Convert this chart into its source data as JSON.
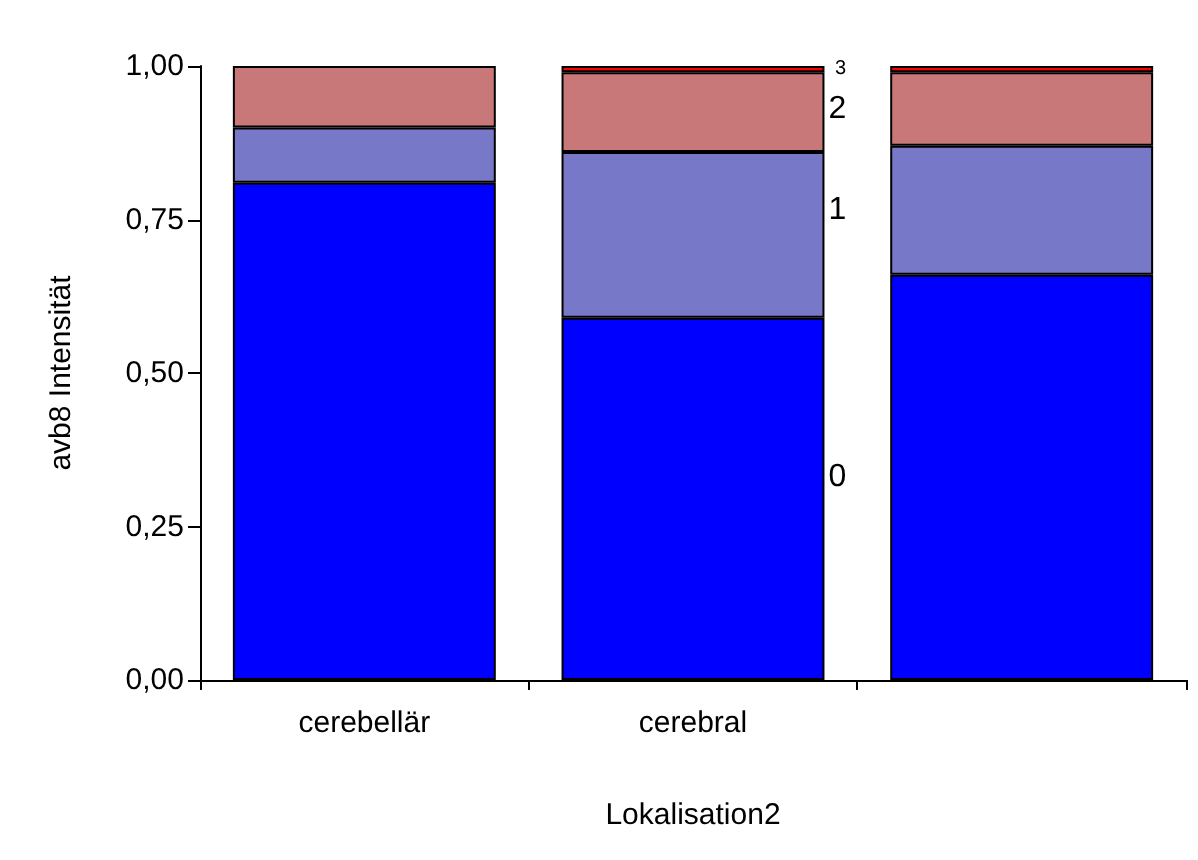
{
  "chart_data": {
    "type": "bar",
    "stacked": true,
    "xlabel": "Lokalisation2",
    "ylabel": "avb8 Intensität",
    "categories": [
      "cerebellär",
      "cerebral",
      null
    ],
    "series": [
      {
        "name": "0",
        "color": "#0000ff",
        "values": [
          0.81,
          0.59,
          0.66
        ]
      },
      {
        "name": "1",
        "color": "#7878c8",
        "values": [
          0.09,
          0.27,
          0.21
        ]
      },
      {
        "name": "2",
        "color": "#c87878",
        "values": [
          0.1,
          0.13,
          0.12
        ]
      },
      {
        "name": "3",
        "color": "#ff0000",
        "values": [
          null,
          0.01,
          0.01
        ]
      }
    ],
    "ylim": [
      0,
      1
    ],
    "yticks": [
      {
        "value": 0,
        "label": "0,00"
      },
      {
        "value": 0.25,
        "label": "0,25"
      },
      {
        "value": 0.5,
        "label": "0,50"
      },
      {
        "value": 0.75,
        "label": "0,75"
      },
      {
        "value": 1,
        "label": "1,00"
      }
    ],
    "grid": false,
    "legend": false
  }
}
